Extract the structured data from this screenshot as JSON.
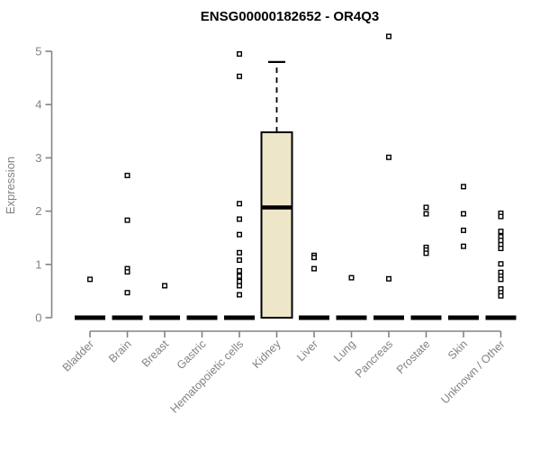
{
  "chart_data": {
    "type": "boxplot",
    "title": "ENSG00000182652 - OR4Q3",
    "ylabel": "Expression",
    "xlabel": "",
    "ylim": [
      0,
      5
    ],
    "yticks": [
      0,
      1,
      2,
      3,
      4,
      5
    ],
    "grid": false,
    "legend": false,
    "categories": [
      "Bladder",
      "Brain",
      "Breast",
      "Gastric",
      "Hematopoietic cells",
      "Kidney",
      "Liver",
      "Lung",
      "Pancreas",
      "Prostate",
      "Skin",
      "Unknown / Other"
    ],
    "boxes": [
      {
        "category": "Bladder",
        "q1": 0,
        "median": 0,
        "q3": 0,
        "whisker_low": 0,
        "whisker_high": 0,
        "outliers": [
          0.72
        ]
      },
      {
        "category": "Brain",
        "q1": 0,
        "median": 0,
        "q3": 0,
        "whisker_low": 0,
        "whisker_high": 0,
        "outliers": [
          2.67,
          1.83,
          0.92,
          0.86,
          0.47
        ]
      },
      {
        "category": "Breast",
        "q1": 0,
        "median": 0,
        "q3": 0,
        "whisker_low": 0,
        "whisker_high": 0,
        "outliers": [
          0.6
        ]
      },
      {
        "category": "Gastric",
        "q1": 0,
        "median": 0,
        "q3": 0,
        "whisker_low": 0,
        "whisker_high": 0,
        "outliers": []
      },
      {
        "category": "Hematopoietic cells",
        "q1": 0,
        "median": 0,
        "q3": 0,
        "whisker_low": 0,
        "whisker_high": 0,
        "outliers": [
          4.95,
          4.53,
          2.14,
          1.85,
          1.56,
          1.22,
          1.08,
          0.88,
          0.78,
          0.68,
          0.6,
          0.43
        ]
      },
      {
        "category": "Kidney",
        "q1": 0,
        "median": 2.07,
        "q3": 3.48,
        "whisker_low": 0,
        "whisker_high": 4.8,
        "outliers": []
      },
      {
        "category": "Liver",
        "q1": 0,
        "median": 0,
        "q3": 0,
        "whisker_low": 0,
        "whisker_high": 0,
        "outliers": [
          1.17,
          1.13,
          0.92
        ]
      },
      {
        "category": "Lung",
        "q1": 0,
        "median": 0,
        "q3": 0,
        "whisker_low": 0,
        "whisker_high": 0,
        "outliers": [
          0.75
        ]
      },
      {
        "category": "Pancreas",
        "q1": 0,
        "median": 0,
        "q3": 0,
        "whisker_low": 0,
        "whisker_high": 0,
        "outliers": [
          5.28,
          3.01,
          0.73
        ]
      },
      {
        "category": "Prostate",
        "q1": 0,
        "median": 0,
        "q3": 0,
        "whisker_low": 0,
        "whisker_high": 0,
        "outliers": [
          2.07,
          1.95,
          1.32,
          1.27,
          1.21
        ]
      },
      {
        "category": "Skin",
        "q1": 0,
        "median": 0,
        "q3": 0,
        "whisker_low": 0,
        "whisker_high": 0,
        "outliers": [
          2.46,
          1.95,
          1.64,
          1.34
        ]
      },
      {
        "category": "Unknown / Other",
        "q1": 0,
        "median": 0,
        "q3": 0,
        "whisker_low": 0,
        "whisker_high": 0,
        "outliers": [
          1.96,
          1.9,
          1.62,
          1.52,
          1.45,
          1.37,
          1.3,
          1.01,
          0.85,
          0.78,
          0.72,
          0.54,
          0.47,
          0.41
        ]
      }
    ],
    "style": {
      "box_fill": "#EDE6C8",
      "box_stroke": "#000000",
      "median_color": "#000000",
      "outlier_fill": "#FFFFFF",
      "outlier_stroke": "#000000",
      "axis_color": "#848484",
      "label_color": "#828282",
      "title_color": "#000000",
      "background": "#FFFFFF"
    }
  }
}
